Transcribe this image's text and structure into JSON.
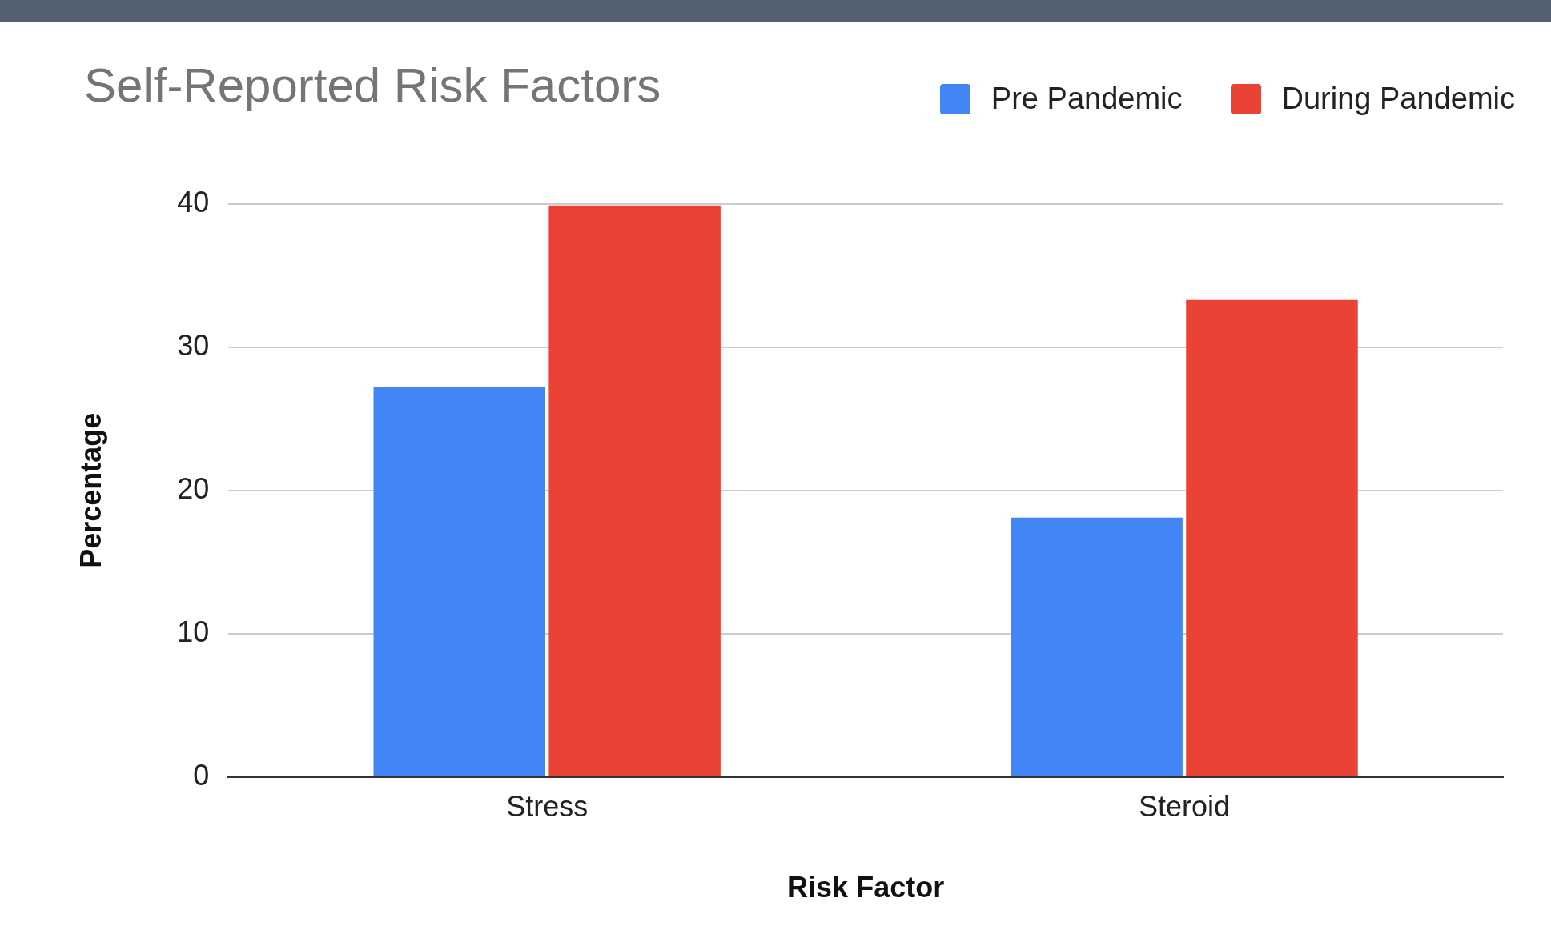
{
  "chart_data": {
    "type": "bar",
    "title": "Self-Reported Risk Factors",
    "xlabel": "Risk Factor",
    "ylabel": "Percentage",
    "categories": [
      "Stress",
      "Steroid"
    ],
    "series": [
      {
        "name": "Pre Pandemic",
        "color": "#4285f4",
        "values": [
          27.2,
          18.1
        ]
      },
      {
        "name": "During Pandemic",
        "color": "#ea4335",
        "values": [
          39.9,
          33.3
        ]
      }
    ],
    "ylim": [
      0,
      40
    ],
    "yticks": [
      0,
      10,
      20,
      30,
      40
    ],
    "grid": "y",
    "legend": "top right"
  }
}
